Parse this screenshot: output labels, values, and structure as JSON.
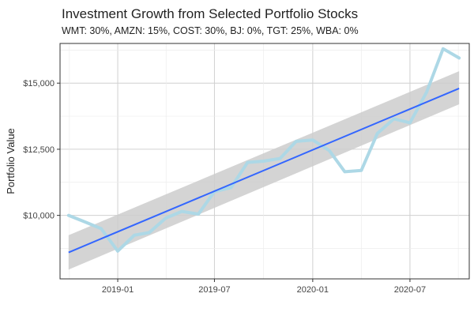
{
  "chart_data": {
    "type": "line",
    "title": "Investment Growth from Selected Portfolio Stocks",
    "subtitle": "WMT: 30%, AMZN: 15%, COST: 30%, BJ: 0%, TGT: 25%, WBA: 0%",
    "xlabel": "",
    "ylabel": "Portfolio Value",
    "x_ticks": [
      "2019-01",
      "2019-07",
      "2020-01",
      "2020-07"
    ],
    "y_ticks": [
      "$10,000",
      "$12,500",
      "$15,000"
    ],
    "ylim": [
      7600,
      16500
    ],
    "xlim": [
      "2018-09-15",
      "2020-10-20"
    ],
    "grid": true,
    "legend": "none",
    "series": [
      {
        "color": "#add8e6",
        "x": [
          "2018-10-01",
          "2018-11-01",
          "2018-12-01",
          "2019-01-01",
          "2019-02-01",
          "2019-03-01",
          "2019-04-01",
          "2019-05-01",
          "2019-06-01",
          "2019-07-01",
          "2019-08-01",
          "2019-09-01",
          "2019-10-01",
          "2019-11-01",
          "2019-12-01",
          "2020-01-01",
          "2020-02-01",
          "2020-03-01",
          "2020-04-01",
          "2020-05-01",
          "2020-06-01",
          "2020-07-01",
          "2020-08-01",
          "2020-09-01",
          "2020-10-01"
        ],
        "values": [
          10000,
          9750,
          9500,
          8650,
          9250,
          9350,
          9900,
          10150,
          10050,
          10900,
          11050,
          12000,
          12050,
          12150,
          12800,
          12850,
          12450,
          11650,
          11700,
          13100,
          13650,
          13500,
          14650,
          16300,
          15950
        ]
      }
    ],
    "trend": {
      "color": "#3366ff",
      "band_color": "#cccccc",
      "x": [
        "2018-10-01",
        "2020-10-01"
      ],
      "values": [
        8600,
        14800
      ],
      "band_lower": [
        7950,
        14200
      ],
      "band_upper": [
        9250,
        15450
      ]
    }
  }
}
